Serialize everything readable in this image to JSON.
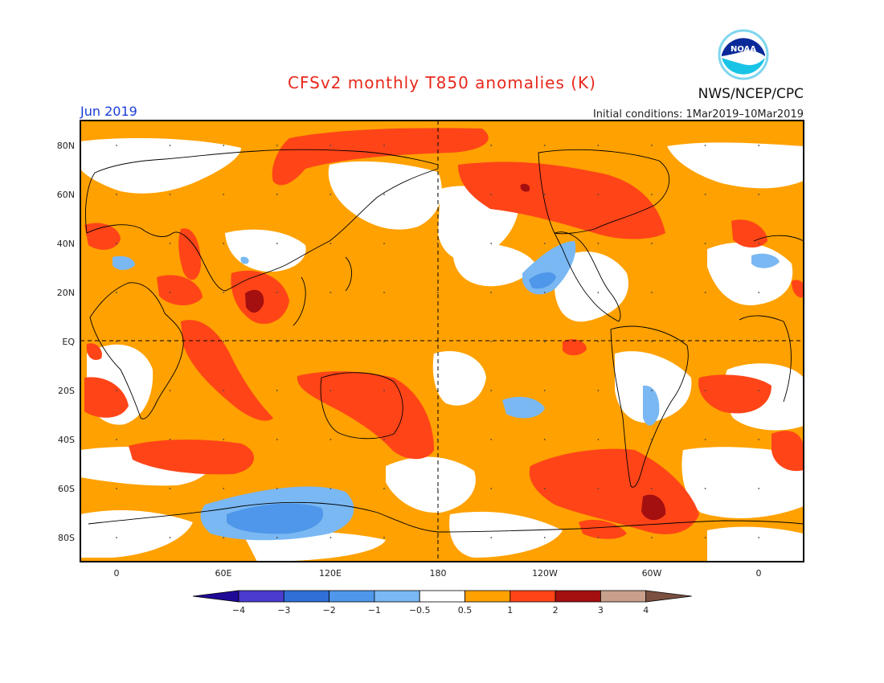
{
  "title": "CFSv2 monthly T850 anomalies (K)",
  "agency": "NWS/NCEP/CPC",
  "logo_text": "NOAA",
  "month_label": "Jun 2019",
  "initial_conditions": "Initial conditions: 1Mar2019–10Mar2019",
  "lat_labels": [
    "80N",
    "60N",
    "40N",
    "20N",
    "EQ",
    "20S",
    "40S",
    "60S",
    "80S"
  ],
  "lon_labels": [
    "0",
    "60E",
    "120E",
    "180",
    "120W",
    "60W",
    "0"
  ],
  "colorbar": {
    "ticks": [
      "−4",
      "−3",
      "−2",
      "−1",
      "−0.5",
      "0.5",
      "1",
      "2",
      "3",
      "4"
    ],
    "colors": [
      "#1e0a96",
      "#4a3ccf",
      "#2f6fd6",
      "#4f97ea",
      "#7ab8f3",
      "#ffffff",
      "#ffa100",
      "#ff4418",
      "#a40f0f",
      "#c9a08c",
      "#7a5040"
    ]
  },
  "palette": {
    "title": "#e8281c",
    "month": "#1a3dd8",
    "ocean_fill": "#ffa100",
    "warm": "#ff4418",
    "very_warm": "#a40f0f",
    "cool": "#7ab8f3",
    "cooler": "#4f97ea"
  }
}
